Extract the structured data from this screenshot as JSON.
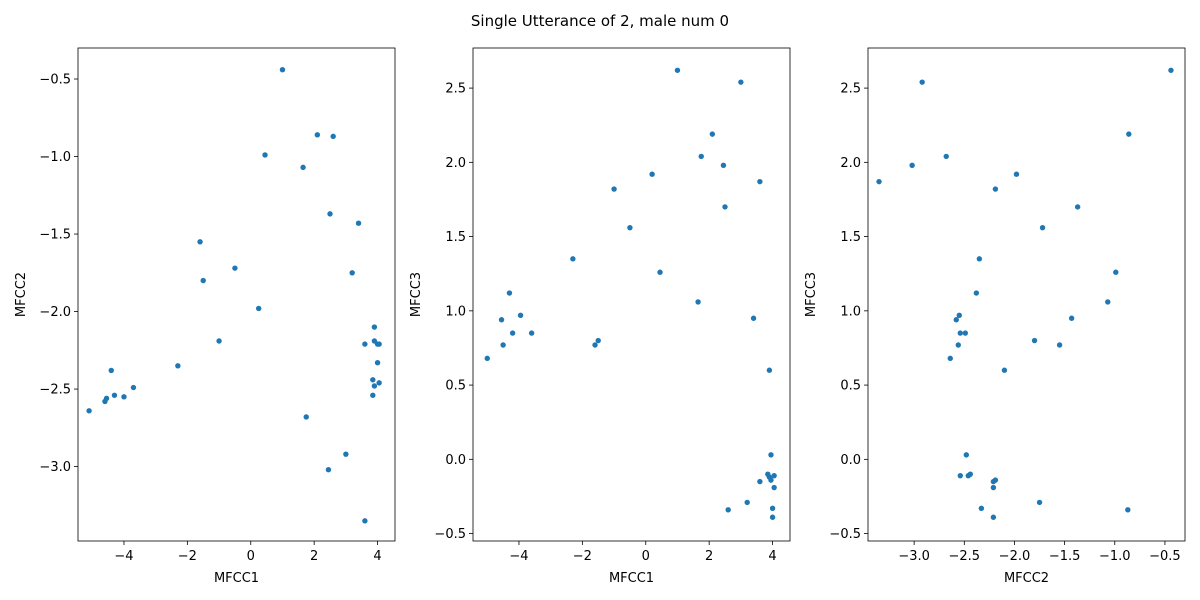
{
  "figure": {
    "title": "Single Utterance of 2, male num 0",
    "point_color": "#1f77b4"
  },
  "chart_data": [
    {
      "type": "scatter",
      "xlabel": "MFCC1",
      "ylabel": "MFCC2",
      "xlim": [
        -5.45,
        4.55
      ],
      "ylim": [
        -3.48,
        -0.3
      ],
      "xticks": [
        -4,
        -2,
        0,
        2,
        4
      ],
      "yticks": [
        -3.0,
        -2.5,
        -2.0,
        -1.5,
        -1.0,
        -0.5
      ],
      "xtick_labels": [
        "−4",
        "−2",
        "0",
        "2",
        "4"
      ],
      "ytick_labels": [
        "−3.0",
        "−2.5",
        "−2.0",
        "−1.5",
        "−1.0",
        "−0.5"
      ],
      "points": [
        {
          "x": 1.0,
          "y": -0.44
        },
        {
          "x": 2.1,
          "y": -0.86
        },
        {
          "x": 2.6,
          "y": -0.87
        },
        {
          "x": 0.45,
          "y": -0.99
        },
        {
          "x": 1.65,
          "y": -1.07
        },
        {
          "x": 2.5,
          "y": -1.37
        },
        {
          "x": 3.4,
          "y": -1.43
        },
        {
          "x": -1.6,
          "y": -1.55
        },
        {
          "x": -0.5,
          "y": -1.72
        },
        {
          "x": 3.2,
          "y": -1.75
        },
        {
          "x": -1.5,
          "y": -1.8
        },
        {
          "x": 0.25,
          "y": -1.98
        },
        {
          "x": 3.9,
          "y": -2.1
        },
        {
          "x": -1.0,
          "y": -2.19
        },
        {
          "x": 3.9,
          "y": -2.19
        },
        {
          "x": 3.6,
          "y": -2.21
        },
        {
          "x": 4.0,
          "y": -2.21
        },
        {
          "x": 4.05,
          "y": -2.21
        },
        {
          "x": 4.0,
          "y": -2.33
        },
        {
          "x": -2.3,
          "y": -2.35
        },
        {
          "x": -4.4,
          "y": -2.38
        },
        {
          "x": 3.85,
          "y": -2.44
        },
        {
          "x": 4.05,
          "y": -2.46
        },
        {
          "x": 3.9,
          "y": -2.48
        },
        {
          "x": -3.7,
          "y": -2.49
        },
        {
          "x": -4.3,
          "y": -2.54
        },
        {
          "x": 3.85,
          "y": -2.54
        },
        {
          "x": -4.0,
          "y": -2.55
        },
        {
          "x": -4.55,
          "y": -2.56
        },
        {
          "x": -4.6,
          "y": -2.58
        },
        {
          "x": -5.1,
          "y": -2.64
        },
        {
          "x": 1.75,
          "y": -2.68
        },
        {
          "x": 3.0,
          "y": -2.92
        },
        {
          "x": 2.45,
          "y": -3.02
        },
        {
          "x": 3.6,
          "y": -3.35
        }
      ]
    },
    {
      "type": "scatter",
      "xlabel": "MFCC1",
      "ylabel": "MFCC3",
      "xlim": [
        -5.45,
        4.55
      ],
      "ylim": [
        -0.55,
        2.77
      ],
      "xticks": [
        -4,
        -2,
        0,
        2,
        4
      ],
      "yticks": [
        -0.5,
        0.0,
        0.5,
        1.0,
        1.5,
        2.0,
        2.5
      ],
      "xtick_labels": [
        "−4",
        "−2",
        "0",
        "2",
        "4"
      ],
      "ytick_labels": [
        "−0.5",
        "0.0",
        "0.5",
        "1.0",
        "1.5",
        "2.0",
        "2.5"
      ],
      "points": [
        {
          "x": 1.0,
          "y": 2.62
        },
        {
          "x": 3.0,
          "y": 2.54
        },
        {
          "x": 2.1,
          "y": 2.19
        },
        {
          "x": 1.75,
          "y": 2.04
        },
        {
          "x": 2.45,
          "y": 1.98
        },
        {
          "x": 0.2,
          "y": 1.92
        },
        {
          "x": 3.6,
          "y": 1.87
        },
        {
          "x": -1.0,
          "y": 1.82
        },
        {
          "x": 2.5,
          "y": 1.7
        },
        {
          "x": -0.5,
          "y": 1.56
        },
        {
          "x": -2.3,
          "y": 1.35
        },
        {
          "x": 0.45,
          "y": 1.26
        },
        {
          "x": -4.3,
          "y": 1.12
        },
        {
          "x": 1.65,
          "y": 1.06
        },
        {
          "x": -3.95,
          "y": 0.97
        },
        {
          "x": -4.55,
          "y": 0.94
        },
        {
          "x": 3.4,
          "y": 0.95
        },
        {
          "x": -4.2,
          "y": 0.85
        },
        {
          "x": -3.6,
          "y": 0.85
        },
        {
          "x": -1.5,
          "y": 0.8
        },
        {
          "x": -1.6,
          "y": 0.77
        },
        {
          "x": -4.5,
          "y": 0.77
        },
        {
          "x": -5.0,
          "y": 0.68
        },
        {
          "x": 3.9,
          "y": 0.6
        },
        {
          "x": 3.95,
          "y": 0.03
        },
        {
          "x": 3.85,
          "y": -0.1
        },
        {
          "x": 3.9,
          "y": -0.12
        },
        {
          "x": 4.05,
          "y": -0.11
        },
        {
          "x": 3.6,
          "y": -0.15
        },
        {
          "x": 3.95,
          "y": -0.14
        },
        {
          "x": 4.05,
          "y": -0.19
        },
        {
          "x": 3.2,
          "y": -0.29
        },
        {
          "x": 4.0,
          "y": -0.33
        },
        {
          "x": 2.6,
          "y": -0.34
        },
        {
          "x": 4.0,
          "y": -0.39
        }
      ]
    },
    {
      "type": "scatter",
      "xlabel": "MFCC2",
      "ylabel": "MFCC3",
      "xlim": [
        -3.46,
        -0.3
      ],
      "ylim": [
        -0.55,
        2.77
      ],
      "xticks": [
        -3.0,
        -2.5,
        -2.0,
        -1.5,
        -1.0,
        -0.5
      ],
      "yticks": [
        -0.5,
        0.0,
        0.5,
        1.0,
        1.5,
        2.0,
        2.5
      ],
      "xtick_labels": [
        "−3.0",
        "−2.5",
        "−2.0",
        "−1.5",
        "−1.0",
        "−0.5"
      ],
      "ytick_labels": [
        "−0.5",
        "0.0",
        "0.5",
        "1.0",
        "1.5",
        "2.0",
        "2.5"
      ],
      "points": [
        {
          "x": -0.44,
          "y": 2.62
        },
        {
          "x": -2.92,
          "y": 2.54
        },
        {
          "x": -0.86,
          "y": 2.19
        },
        {
          "x": -2.68,
          "y": 2.04
        },
        {
          "x": -3.02,
          "y": 1.98
        },
        {
          "x": -1.98,
          "y": 1.92
        },
        {
          "x": -3.35,
          "y": 1.87
        },
        {
          "x": -2.19,
          "y": 1.82
        },
        {
          "x": -1.37,
          "y": 1.7
        },
        {
          "x": -1.72,
          "y": 1.56
        },
        {
          "x": -2.35,
          "y": 1.35
        },
        {
          "x": -0.99,
          "y": 1.26
        },
        {
          "x": -2.38,
          "y": 1.12
        },
        {
          "x": -1.07,
          "y": 1.06
        },
        {
          "x": -2.55,
          "y": 0.97
        },
        {
          "x": -2.58,
          "y": 0.94
        },
        {
          "x": -1.43,
          "y": 0.95
        },
        {
          "x": -2.54,
          "y": 0.85
        },
        {
          "x": -2.49,
          "y": 0.85
        },
        {
          "x": -1.8,
          "y": 0.8
        },
        {
          "x": -1.55,
          "y": 0.77
        },
        {
          "x": -2.56,
          "y": 0.77
        },
        {
          "x": -2.64,
          "y": 0.68
        },
        {
          "x": -2.1,
          "y": 0.6
        },
        {
          "x": -2.48,
          "y": 0.03
        },
        {
          "x": -2.44,
          "y": -0.1
        },
        {
          "x": -2.54,
          "y": -0.11
        },
        {
          "x": -2.46,
          "y": -0.11
        },
        {
          "x": -2.21,
          "y": -0.15
        },
        {
          "x": -2.19,
          "y": -0.14
        },
        {
          "x": -2.21,
          "y": -0.19
        },
        {
          "x": -1.75,
          "y": -0.29
        },
        {
          "x": -2.33,
          "y": -0.33
        },
        {
          "x": -0.87,
          "y": -0.34
        },
        {
          "x": -2.21,
          "y": -0.39
        }
      ]
    }
  ]
}
